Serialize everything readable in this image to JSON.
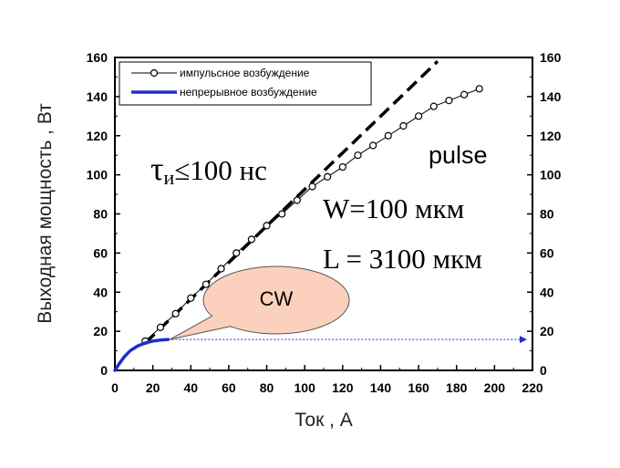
{
  "chart_data": {
    "type": "line",
    "xlabel": "Ток , А",
    "ylabel": "Выходная мощность , Вт",
    "xlim": [
      0,
      220
    ],
    "ylim": [
      0,
      160
    ],
    "x_ticks": [
      0,
      20,
      40,
      60,
      80,
      100,
      120,
      140,
      160,
      180,
      200,
      220
    ],
    "y_ticks": [
      0,
      20,
      40,
      60,
      80,
      100,
      120,
      140,
      160
    ],
    "legend_position": "top-left",
    "series": [
      {
        "name": "импульсное возбуждение",
        "style": "line-open-circle-markers",
        "color": "#000000",
        "x": [
          16,
          24,
          32,
          40,
          48,
          56,
          64,
          72,
          80,
          88,
          96,
          104,
          112,
          120,
          128,
          136,
          144,
          152,
          160,
          168,
          176,
          184,
          192
        ],
        "y": [
          15,
          22,
          29,
          37,
          44,
          52,
          60,
          67,
          74,
          80,
          87,
          94,
          99,
          104,
          110,
          115,
          120,
          125,
          130,
          135,
          138,
          141,
          144
        ]
      },
      {
        "name": "непрерывное возбуждение",
        "style": "thick-solid-line",
        "color": "#1f2ecf",
        "x": [
          0,
          2,
          5,
          8,
          12,
          16,
          20,
          24,
          28
        ],
        "y": [
          0,
          3,
          7,
          10,
          12.5,
          14,
          15,
          15.5,
          15.8
        ]
      },
      {
        "style": "dashed-thick",
        "color": "#000000",
        "x": [
          16,
          170
        ],
        "y": [
          14,
          158
        ]
      }
    ],
    "cw_arrow": {
      "from": [
        28,
        15.8
      ],
      "to": [
        220,
        15.8
      ],
      "color": "#1f2ecf"
    },
    "annotations": {
      "tau": {
        "symbol": "τ",
        "subscript": "и",
        "text": "≤100 нс"
      },
      "pulse": "pulse",
      "width": "W=100 мкм",
      "length": "L = 3100 мкм",
      "cw_label": "CW"
    },
    "colors": {
      "cw_label": "#ff2a2a",
      "callout_fill": "#fbd0bc",
      "callout_stroke": "#555555"
    }
  }
}
